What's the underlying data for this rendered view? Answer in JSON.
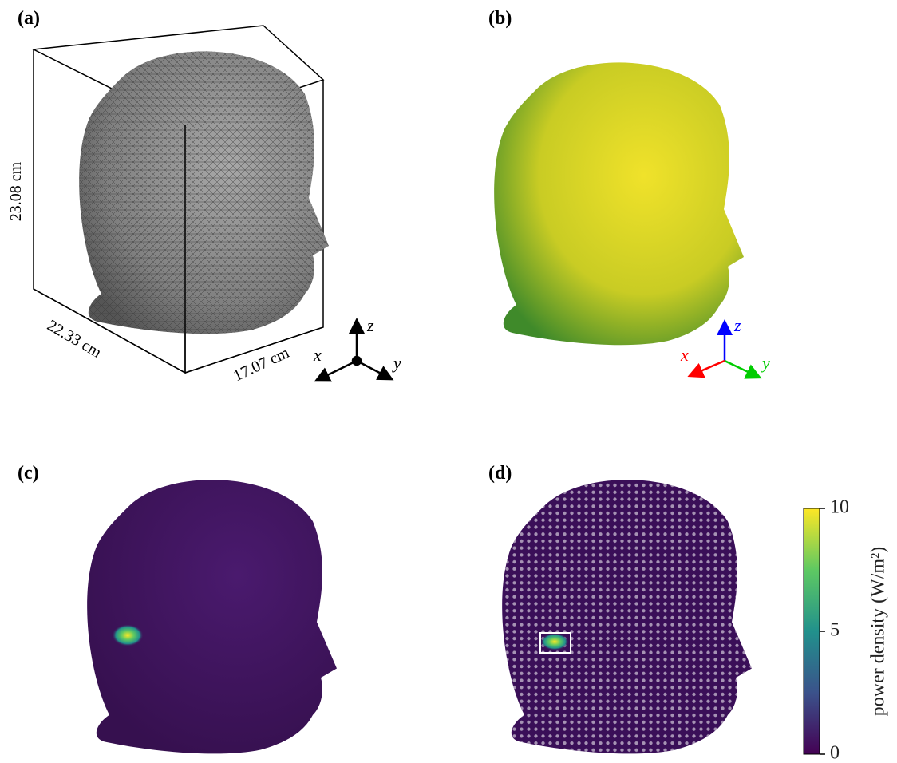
{
  "panels": [
    {
      "label": "(a)",
      "dimensions": {
        "height": "23.08 cm",
        "depth": "22.33 cm",
        "width": "17.07 cm"
      },
      "axes": {
        "x": "x",
        "y": "y",
        "z": "z"
      }
    },
    {
      "label": "(b)",
      "axes": {
        "x": "x",
        "y": "y",
        "z": "z"
      }
    },
    {
      "label": "(c)"
    },
    {
      "label": "(d)"
    }
  ],
  "colorbar": {
    "label": "power density (W/m²)",
    "lim": [
      0,
      10
    ],
    "ticks": [
      0,
      5,
      10
    ]
  }
}
